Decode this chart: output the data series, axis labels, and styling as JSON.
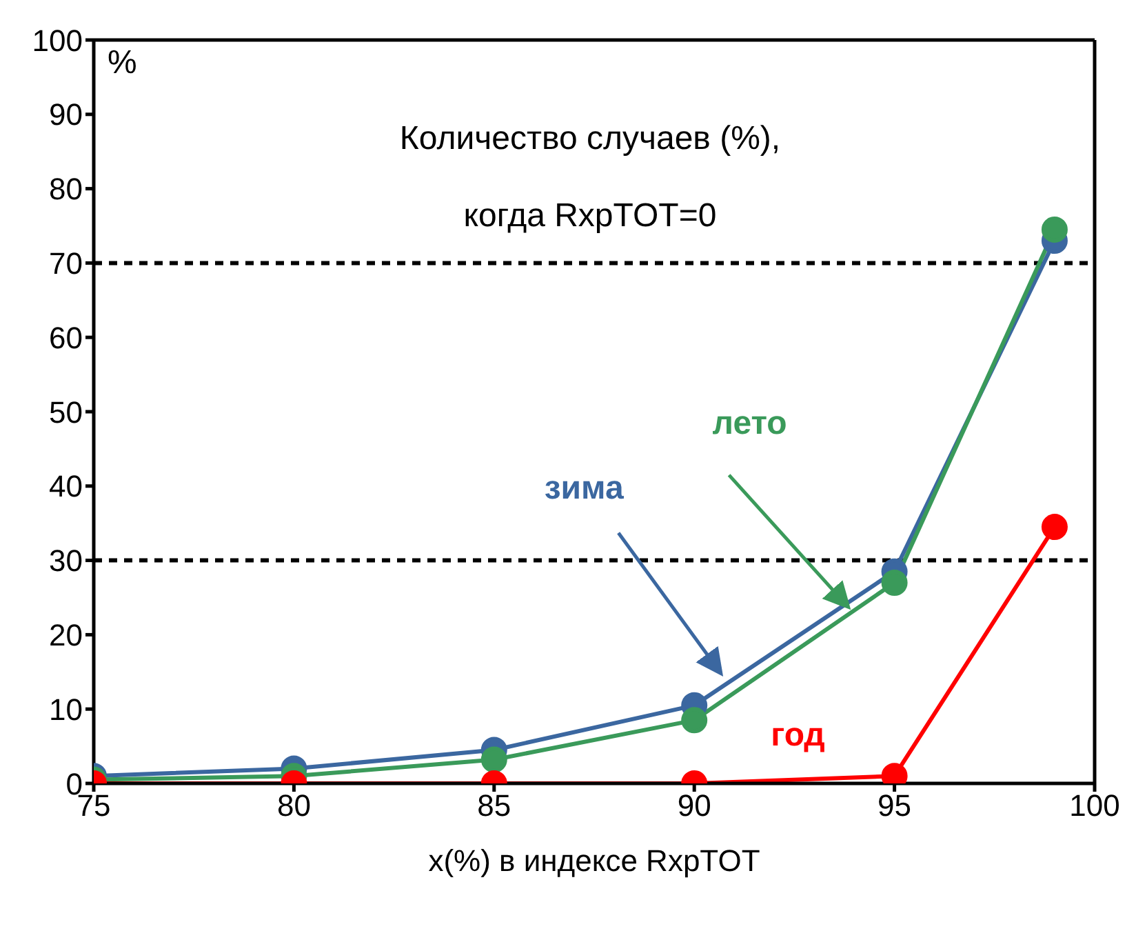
{
  "chart_data": {
    "type": "line",
    "title": "Количество случаев (%), когда RxpTOT=0",
    "xlabel": "x(%) в индексе RxpTOT",
    "ylabel": "%",
    "x": [
      75,
      80,
      85,
      90,
      95,
      99
    ],
    "series": [
      {
        "name": "зима",
        "color": "#3b67a0",
        "values": [
          1,
          2,
          4.5,
          10.5,
          28.5,
          73
        ]
      },
      {
        "name": "лето",
        "color": "#3a9a5a",
        "values": [
          0.5,
          1,
          3.2,
          8.5,
          27,
          74.5
        ]
      },
      {
        "name": "год",
        "color": "#ff0000",
        "values": [
          0,
          0,
          0,
          0,
          1,
          34.5
        ]
      }
    ],
    "xlim": [
      75,
      100
    ],
    "xticks": [
      75,
      80,
      85,
      90,
      95,
      100
    ],
    "ylim": [
      0,
      100
    ],
    "yticks": [
      0,
      10,
      20,
      30,
      40,
      50,
      60,
      70,
      80,
      90,
      100
    ],
    "ref_lines": [
      {
        "axis": "y",
        "value": 70,
        "color": "#000000",
        "line_style": "dashed"
      },
      {
        "axis": "y",
        "value": 30,
        "color": "#000000",
        "line_style": "dashed"
      }
    ],
    "grid": false,
    "legend": false,
    "marker": "circle",
    "line_style": "solid"
  }
}
